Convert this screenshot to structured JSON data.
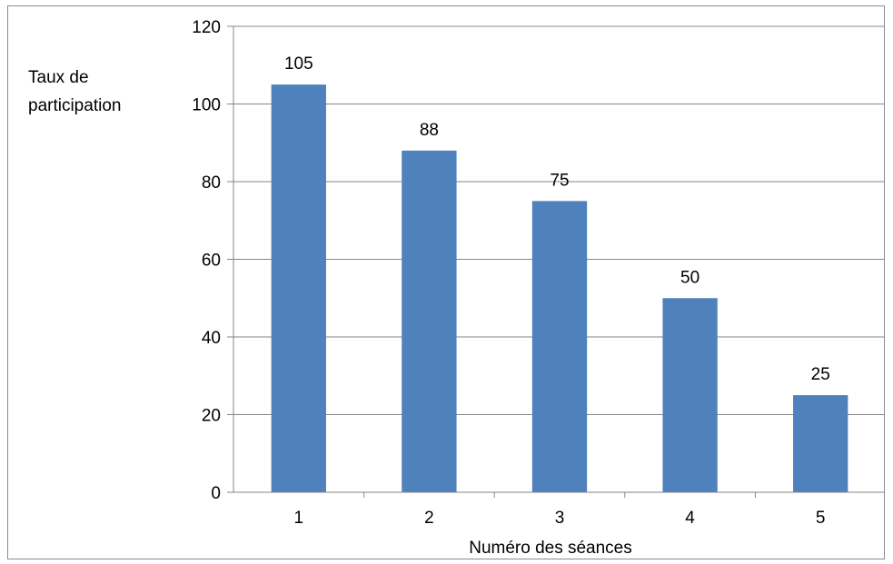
{
  "chart_data": {
    "type": "bar",
    "title": "",
    "xlabel": "Numéro des séances",
    "ylabel_lines": [
      "Taux de",
      "participation"
    ],
    "categories": [
      "1",
      "2",
      "3",
      "4",
      "5"
    ],
    "values": [
      105,
      88,
      75,
      50,
      25
    ],
    "data_labels": [
      "105",
      "88",
      "75",
      "50",
      "25"
    ],
    "ylim": [
      0,
      120
    ],
    "yticks": [
      0,
      20,
      40,
      60,
      80,
      100,
      120
    ],
    "grid": true,
    "legend": "none",
    "bar_color": "#4f81bd",
    "grid_color": "#868686"
  }
}
